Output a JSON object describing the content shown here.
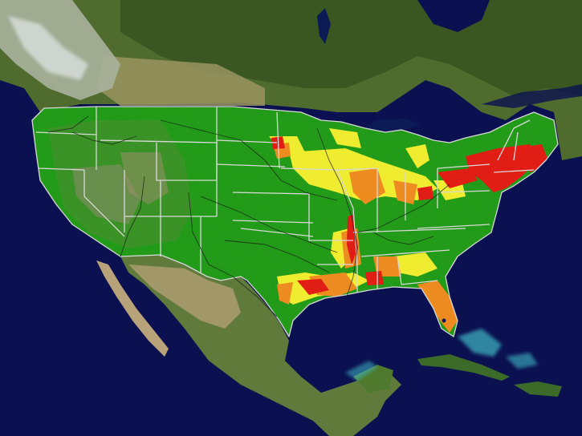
{
  "map": {
    "colors": {
      "ocean": "#0b1150",
      "ocean_shallow": "#3fb7c4",
      "land_canada": "#4f6b2e",
      "land_canada_dark": "#34521f",
      "land_mexico": "#5f7a3a",
      "land_desert": "#b8a27a",
      "snow": "#e8ecef",
      "lakes": "#0c1a55",
      "green": "#1c9a12",
      "yellow": "#f2ef2a",
      "orange": "#f08a1a",
      "red": "#e3170e",
      "borders": "#d9d9d9",
      "rivers": "#1a1a1a"
    },
    "legend_categories": [
      "green",
      "yellow",
      "orange",
      "red"
    ]
  }
}
